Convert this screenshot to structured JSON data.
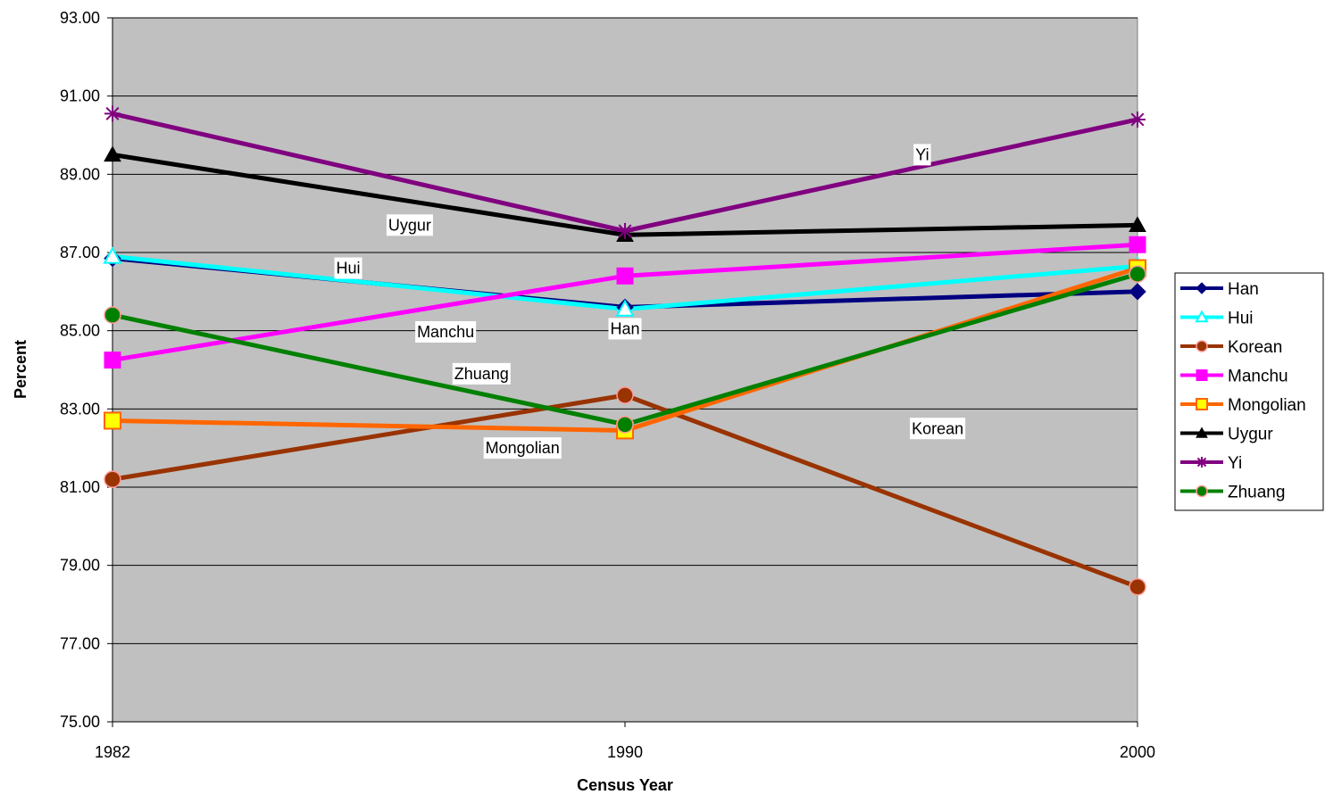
{
  "chart_data": {
    "type": "line",
    "title": "",
    "xlabel": "Census Year",
    "ylabel": "Percent",
    "categories": [
      "1982",
      "1990",
      "2000"
    ],
    "ylim": [
      75,
      93
    ],
    "yticks": [
      "75.00",
      "77.00",
      "79.00",
      "81.00",
      "83.00",
      "85.00",
      "87.00",
      "89.00",
      "91.00",
      "93.00"
    ],
    "grid": true,
    "plot_background": "#c0c0c0",
    "legend_position": "right",
    "series": [
      {
        "name": "Han",
        "values": [
          86.85,
          85.6,
          86.0
        ],
        "color": "#000080",
        "marker": "diamond",
        "inline_label": "Han"
      },
      {
        "name": "Hui",
        "values": [
          86.9,
          85.55,
          86.65
        ],
        "color": "#00ffff",
        "marker": "triangle-open",
        "inline_label": "Hui"
      },
      {
        "name": "Korean",
        "values": [
          81.2,
          83.35,
          78.45
        ],
        "color": "#993300",
        "marker": "circle",
        "inline_label": "Korean"
      },
      {
        "name": "Manchu",
        "values": [
          84.25,
          86.4,
          87.2
        ],
        "color": "#ff00ff",
        "marker": "square",
        "inline_label": "Manchu"
      },
      {
        "name": "Mongolian",
        "values": [
          82.7,
          82.45,
          86.6
        ],
        "color": "#ff6600",
        "marker": "square-yellow",
        "inline_label": "Mongolian"
      },
      {
        "name": "Uygur",
        "values": [
          89.5,
          87.45,
          87.7
        ],
        "color": "#000000",
        "marker": "triangle",
        "inline_label": "Uygur"
      },
      {
        "name": "Yi",
        "values": [
          90.55,
          87.55,
          90.4
        ],
        "color": "#800080",
        "marker": "star",
        "inline_label": "Yi"
      },
      {
        "name": "Zhuang",
        "values": [
          85.4,
          82.6,
          86.45
        ],
        "color": "#008000",
        "marker": "circle",
        "inline_label": "Zhuang"
      }
    ]
  }
}
